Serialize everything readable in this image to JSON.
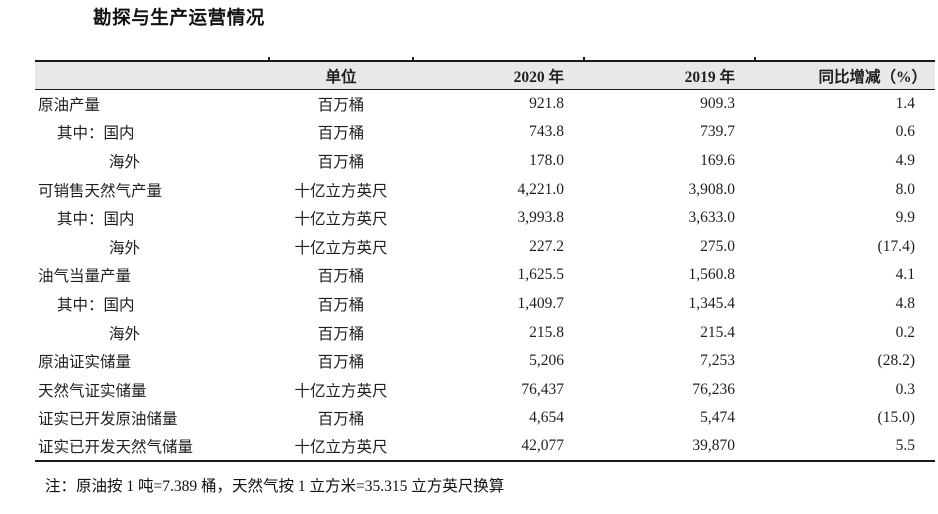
{
  "page": {
    "title": "勘探与生产运营情况",
    "note": "注：原油按 1 吨=7.389 桶，天然气按 1 立方米=35.315 立方英尺换算"
  },
  "colors": {
    "header_bg": "#e8e8e8",
    "border": "#1a1a1a",
    "text": "#1f1f1f"
  },
  "table": {
    "headers": {
      "item": "",
      "unit": "单位",
      "y2020": "2020 年",
      "y2019": "2019 年",
      "yoy": "同比增减（%）"
    },
    "rows": [
      {
        "label": "原油产量",
        "indent": 0,
        "unit": "百万桶",
        "y2020": "921.8",
        "y2019": "909.3",
        "yoy": "1.4"
      },
      {
        "label": "其中：国内",
        "indent": 1,
        "unit": "百万桶",
        "y2020": "743.8",
        "y2019": "739.7",
        "yoy": "0.6"
      },
      {
        "label": "海外",
        "indent": 2,
        "unit": "百万桶",
        "y2020": "178.0",
        "y2019": "169.6",
        "yoy": "4.9"
      },
      {
        "label": "可销售天然气产量",
        "indent": 0,
        "unit": "十亿立方英尺",
        "y2020": "4,221.0",
        "y2019": "3,908.0",
        "yoy": "8.0"
      },
      {
        "label": "其中：国内",
        "indent": 1,
        "unit": "十亿立方英尺",
        "y2020": "3,993.8",
        "y2019": "3,633.0",
        "yoy": "9.9"
      },
      {
        "label": "海外",
        "indent": 2,
        "unit": "十亿立方英尺",
        "y2020": "227.2",
        "y2019": "275.0",
        "yoy": "(17.4)"
      },
      {
        "label": "油气当量产量",
        "indent": 0,
        "unit": "百万桶",
        "y2020": "1,625.5",
        "y2019": "1,560.8",
        "yoy": "4.1"
      },
      {
        "label": "其中：国内",
        "indent": 1,
        "unit": "百万桶",
        "y2020": "1,409.7",
        "y2019": "1,345.4",
        "yoy": "4.8"
      },
      {
        "label": "海外",
        "indent": 2,
        "unit": "百万桶",
        "y2020": "215.8",
        "y2019": "215.4",
        "yoy": "0.2"
      },
      {
        "label": "原油证实储量",
        "indent": 0,
        "unit": "百万桶",
        "y2020": "5,206",
        "y2019": "7,253",
        "yoy": "(28.2)"
      },
      {
        "label": "天然气证实储量",
        "indent": 0,
        "unit": "十亿立方英尺",
        "y2020": "76,437",
        "y2019": "76,236",
        "yoy": "0.3"
      },
      {
        "label": "证实已开发原油储量",
        "indent": 0,
        "unit": "百万桶",
        "y2020": "4,654",
        "y2019": "5,474",
        "yoy": "(15.0)"
      },
      {
        "label": "证实已开发天然气储量",
        "indent": 0,
        "unit": "十亿立方英尺",
        "y2020": "42,077",
        "y2019": "39,870",
        "yoy": "5.5"
      }
    ]
  }
}
